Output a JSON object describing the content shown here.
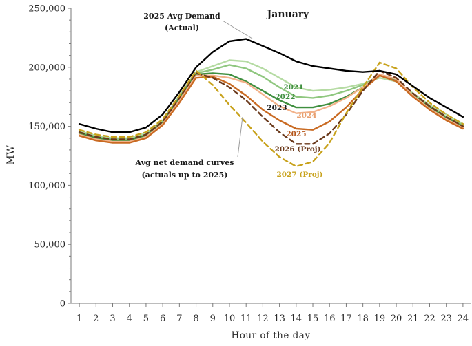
{
  "chart_data": {
    "type": "line",
    "title": "January",
    "xlabel": "Hour of the day",
    "ylabel": "MW",
    "x": [
      1,
      2,
      3,
      4,
      5,
      6,
      7,
      8,
      9,
      10,
      11,
      12,
      13,
      14,
      15,
      16,
      17,
      18,
      19,
      20,
      21,
      22,
      23,
      24
    ],
    "xlim": [
      0.5,
      24.5
    ],
    "ylim": [
      0,
      250000
    ],
    "yticks": [
      0,
      50000,
      100000,
      150000,
      200000,
      250000
    ],
    "ytick_labels": [
      "0",
      "50,000",
      "100,000",
      "150,000",
      "200,000",
      "250,000"
    ],
    "xtick_labels": [
      "1",
      "2",
      "3",
      "4",
      "5",
      "6",
      "7",
      "8",
      "9",
      "10",
      "11",
      "12",
      "13",
      "14",
      "15",
      "16",
      "17",
      "18",
      "19",
      "20",
      "21",
      "22",
      "23",
      "24"
    ],
    "grid": false,
    "series": [
      {
        "name": "2025 Avg Demand (Actual)",
        "color": "#000000",
        "dash": "solid",
        "values": [
          152000,
          148000,
          145000,
          145000,
          149000,
          160000,
          179000,
          200000,
          213000,
          222000,
          224000,
          218000,
          212000,
          205000,
          201000,
          199000,
          197000,
          196000,
          197000,
          194000,
          184000,
          174000,
          166000,
          158000
        ]
      },
      {
        "name": "2021",
        "color": "#b5dba3",
        "dash": "solid",
        "values": [
          146000,
          142000,
          140000,
          140000,
          144000,
          155000,
          176000,
          196000,
          201000,
          206000,
          205000,
          199000,
          191000,
          183000,
          180000,
          181000,
          183000,
          186000,
          191000,
          188000,
          178000,
          168000,
          160000,
          152000
        ]
      },
      {
        "name": "2022",
        "color": "#8fc77f",
        "dash": "solid",
        "values": [
          145000,
          141000,
          139000,
          139000,
          143000,
          154000,
          175000,
          195000,
          198000,
          202000,
          199000,
          192000,
          183000,
          175000,
          174000,
          176000,
          180000,
          185000,
          193000,
          189000,
          177000,
          167000,
          158000,
          151000
        ]
      },
      {
        "name": "2023",
        "color": "#3f8f3f",
        "dash": "solid",
        "values": [
          144000,
          140000,
          138000,
          138000,
          142000,
          153000,
          174000,
          194000,
          195000,
          194000,
          188000,
          180000,
          172000,
          166000,
          166000,
          169000,
          175000,
          183000,
          193000,
          189000,
          176000,
          166000,
          157000,
          150000
        ]
      },
      {
        "name": "2024",
        "color": "#f2b28a",
        "dash": "solid",
        "values": [
          143000,
          139000,
          137000,
          137000,
          141000,
          152000,
          172000,
          193000,
          193000,
          191000,
          187000,
          177000,
          167000,
          161000,
          162000,
          167000,
          174000,
          183000,
          194000,
          190000,
          176000,
          165000,
          156000,
          149000
        ]
      },
      {
        "name": "2025",
        "color": "#c96a22",
        "dash": "solid",
        "values": [
          142000,
          138000,
          136000,
          136000,
          140000,
          151000,
          170000,
          191000,
          192000,
          186000,
          176000,
          164000,
          155000,
          148000,
          147000,
          154000,
          166000,
          181000,
          193000,
          188000,
          175000,
          164000,
          155000,
          148000
        ]
      },
      {
        "name": "2026 (Proj)",
        "color": "#6b3a1c",
        "dash": "dashed",
        "values": [
          145000,
          141000,
          139000,
          139000,
          143000,
          154000,
          174000,
          195000,
          191000,
          183000,
          172000,
          158000,
          145000,
          135000,
          135000,
          144000,
          160000,
          180000,
          197000,
          191000,
          178000,
          167000,
          158000,
          150000
        ]
      },
      {
        "name": "2027 (Proj)",
        "color": "#c8a21c",
        "dash": "dashed",
        "values": [
          147000,
          143000,
          141000,
          141000,
          145000,
          156000,
          176000,
          197000,
          185000,
          168000,
          153000,
          137000,
          124000,
          116000,
          120000,
          136000,
          161000,
          183000,
          204000,
          199000,
          183000,
          170000,
          160000,
          152000
        ]
      }
    ],
    "annotations": [
      {
        "text_line1": "2025 Avg Demand",
        "text_line2": "(Actual)"
      },
      {
        "text_line1": "Avg net demand curves",
        "text_line2": "(actuals up to 2025)"
      }
    ]
  }
}
